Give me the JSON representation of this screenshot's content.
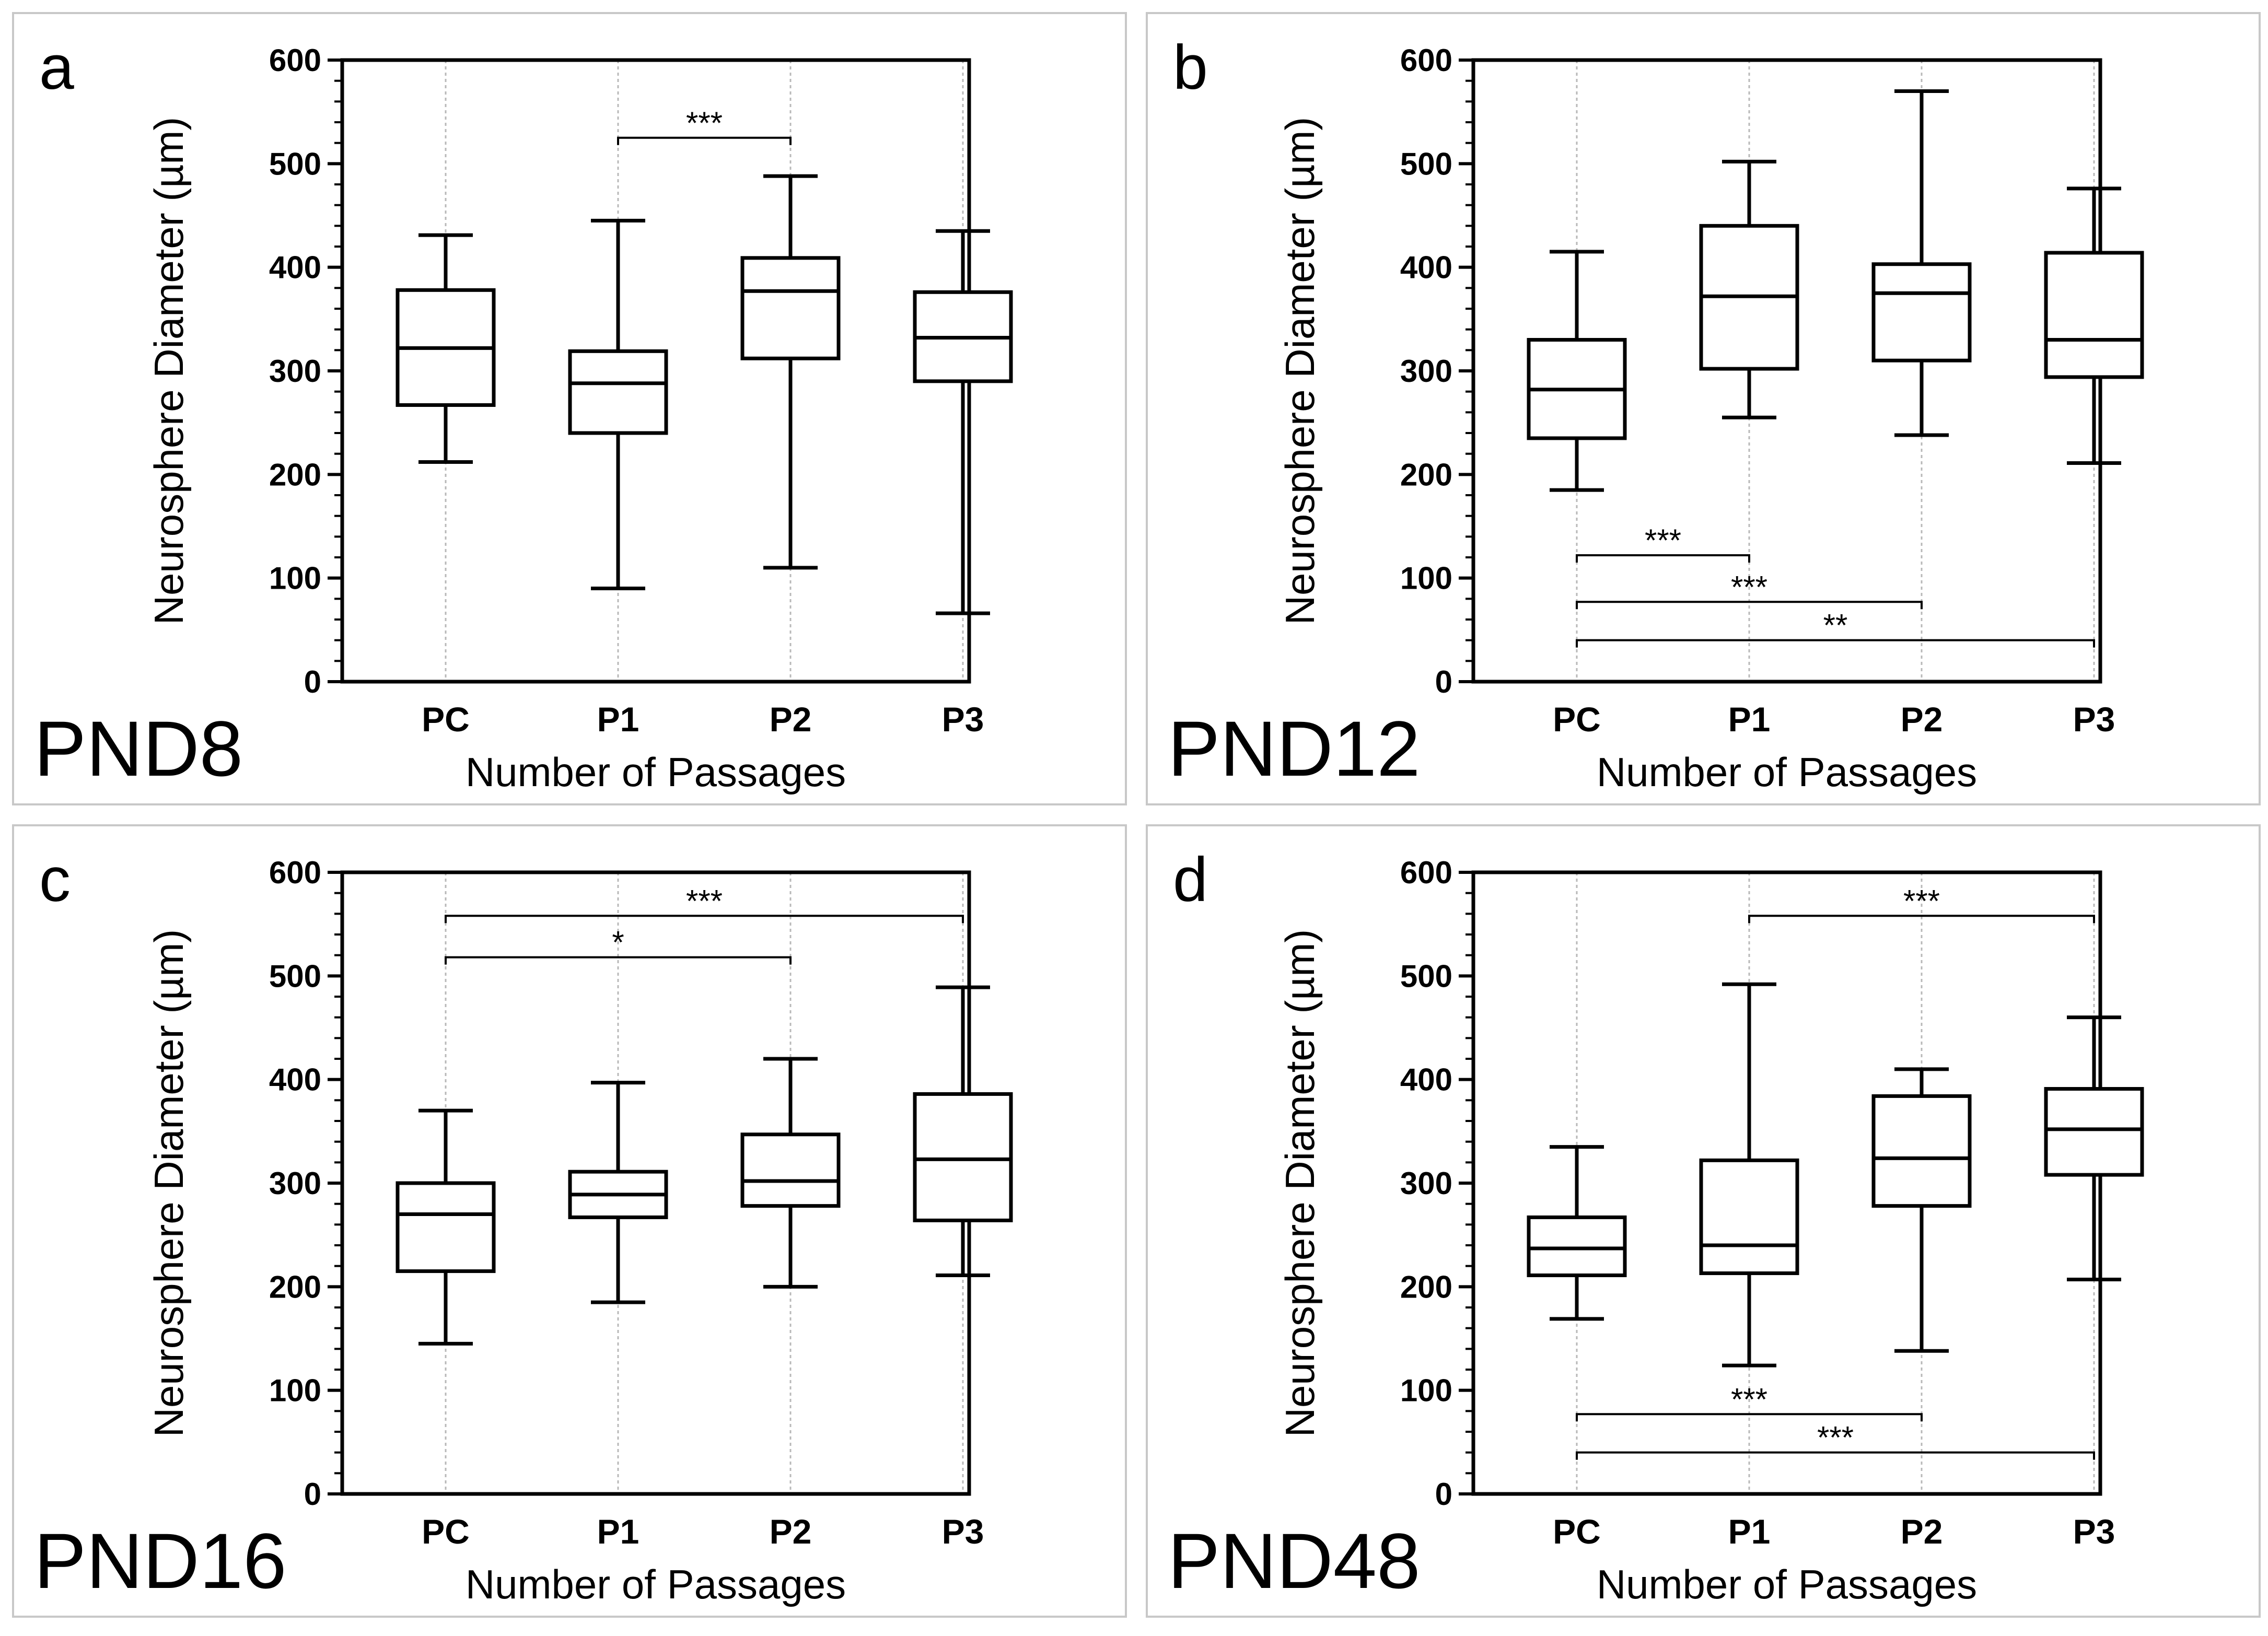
{
  "chart_data": [
    {
      "type": "box",
      "panel": "a",
      "title": "PND8",
      "xlabel": "Number of Passages",
      "ylabel": "Neurosphere Diameter (µm)",
      "ylim": [
        0,
        600
      ],
      "yticks": [
        "0",
        "100",
        "200",
        "300",
        "400",
        "500",
        "600"
      ],
      "categories": [
        "PC",
        "P1",
        "P2",
        "P3"
      ],
      "boxes": [
        {
          "min": 212,
          "q1": 267,
          "median": 322,
          "q3": 378,
          "max": 431
        },
        {
          "min": 90,
          "q1": 240,
          "median": 288,
          "q3": 319,
          "max": 445
        },
        {
          "min": 110,
          "q1": 312,
          "median": 377,
          "q3": 409,
          "max": 488
        },
        {
          "min": 66,
          "q1": 290,
          "median": 332,
          "q3": 376,
          "max": 435
        }
      ],
      "significance": [
        {
          "from": 1,
          "to": 2,
          "y": 525,
          "label": "***"
        }
      ]
    },
    {
      "type": "box",
      "panel": "b",
      "title": "PND12",
      "xlabel": "Number of Passages",
      "ylabel": "Neurosphere Diameter (µm)",
      "ylim": [
        0,
        600
      ],
      "yticks": [
        "0",
        "100",
        "200",
        "300",
        "400",
        "500",
        "600"
      ],
      "categories": [
        "PC",
        "P1",
        "P2",
        "P3"
      ],
      "boxes": [
        {
          "min": 185,
          "q1": 235,
          "median": 282,
          "q3": 330,
          "max": 415
        },
        {
          "min": 255,
          "q1": 302,
          "median": 372,
          "q3": 440,
          "max": 502
        },
        {
          "min": 238,
          "q1": 310,
          "median": 375,
          "q3": 403,
          "max": 570
        },
        {
          "min": 211,
          "q1": 294,
          "median": 330,
          "q3": 414,
          "max": 476
        }
      ],
      "significance": [
        {
          "from": 0,
          "to": 1,
          "y": 122,
          "label": "***"
        },
        {
          "from": 0,
          "to": 2,
          "y": 77,
          "label": "***"
        },
        {
          "from": 0,
          "to": 3,
          "y": 40,
          "label": "**"
        }
      ]
    },
    {
      "type": "box",
      "panel": "c",
      "title": "PND16",
      "xlabel": "Number of Passages",
      "ylabel": "Neurosphere Diameter (µm)",
      "ylim": [
        0,
        600
      ],
      "yticks": [
        "0",
        "100",
        "200",
        "300",
        "400",
        "500",
        "600"
      ],
      "categories": [
        "PC",
        "P1",
        "P2",
        "P3"
      ],
      "boxes": [
        {
          "min": 145,
          "q1": 215,
          "median": 270,
          "q3": 300,
          "max": 370
        },
        {
          "min": 185,
          "q1": 267,
          "median": 289,
          "q3": 311,
          "max": 397
        },
        {
          "min": 200,
          "q1": 278,
          "median": 302,
          "q3": 347,
          "max": 420
        },
        {
          "min": 211,
          "q1": 264,
          "median": 323,
          "q3": 386,
          "max": 489
        }
      ],
      "significance": [
        {
          "from": 0,
          "to": 3,
          "y": 558,
          "label": "***"
        },
        {
          "from": 0,
          "to": 2,
          "y": 518,
          "label": "*"
        }
      ]
    },
    {
      "type": "box",
      "panel": "d",
      "title": "PND48",
      "xlabel": "Number of Passages",
      "ylabel": "Neurosphere Diameter (µm)",
      "ylim": [
        0,
        600
      ],
      "yticks": [
        "0",
        "100",
        "200",
        "300",
        "400",
        "500",
        "600"
      ],
      "categories": [
        "PC",
        "P1",
        "P2",
        "P3"
      ],
      "boxes": [
        {
          "min": 169,
          "q1": 211,
          "median": 237,
          "q3": 267,
          "max": 335
        },
        {
          "min": 124,
          "q1": 213,
          "median": 240,
          "q3": 322,
          "max": 492
        },
        {
          "min": 138,
          "q1": 278,
          "median": 324,
          "q3": 384,
          "max": 410
        },
        {
          "min": 207,
          "q1": 308,
          "median": 352,
          "q3": 391,
          "max": 460
        }
      ],
      "significance": [
        {
          "from": 1,
          "to": 3,
          "y": 558,
          "label": "***"
        },
        {
          "from": 0,
          "to": 2,
          "y": 77,
          "label": "***"
        },
        {
          "from": 0,
          "to": 3,
          "y": 40,
          "label": "***"
        }
      ]
    }
  ]
}
